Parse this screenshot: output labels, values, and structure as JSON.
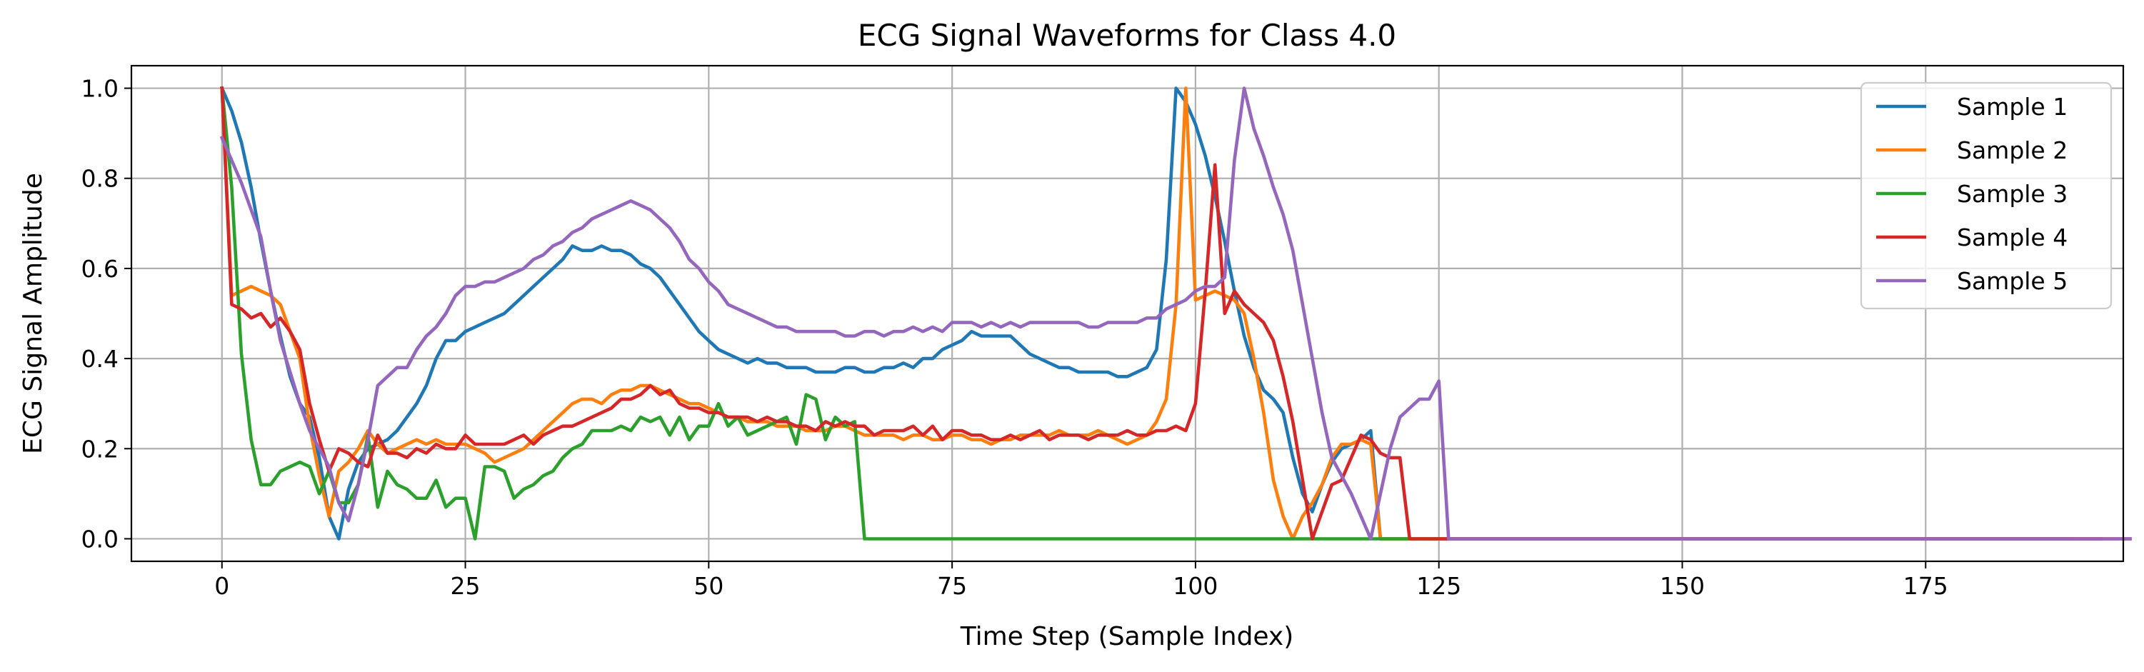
{
  "chart_data": {
    "type": "line",
    "title": "ECG Signal Waveforms for Class 4.0",
    "xlabel": "Time Step (Sample Index)",
    "ylabel": "ECG Signal Amplitude",
    "xlim": [
      -9.3,
      195.3
    ],
    "ylim": [
      -0.05,
      1.05
    ],
    "x_ticks": [
      0,
      25,
      50,
      75,
      100,
      125,
      150,
      175
    ],
    "y_ticks": [
      0.0,
      0.2,
      0.4,
      0.6,
      0.8,
      1.0
    ],
    "x_tick_labels": [
      "0",
      "25",
      "50",
      "75",
      "100",
      "125",
      "150",
      "175"
    ],
    "y_tick_labels": [
      "0.0",
      "0.2",
      "0.4",
      "0.6",
      "0.8",
      "1.0"
    ],
    "grid": true,
    "legend_position": "top-right",
    "x_end": 186,
    "series": [
      {
        "name": "Sample 1",
        "color": "#1f77b4",
        "values": [
          1.0,
          0.95,
          0.88,
          0.78,
          0.66,
          0.55,
          0.45,
          0.36,
          0.3,
          0.27,
          0.18,
          0.05,
          0.0,
          0.11,
          0.17,
          0.2,
          0.21,
          0.22,
          0.24,
          0.27,
          0.3,
          0.34,
          0.4,
          0.44,
          0.44,
          0.46,
          0.47,
          0.48,
          0.49,
          0.5,
          0.52,
          0.54,
          0.56,
          0.58,
          0.6,
          0.62,
          0.65,
          0.64,
          0.64,
          0.65,
          0.64,
          0.64,
          0.63,
          0.61,
          0.6,
          0.58,
          0.55,
          0.52,
          0.49,
          0.46,
          0.44,
          0.42,
          0.41,
          0.4,
          0.39,
          0.4,
          0.39,
          0.39,
          0.38,
          0.38,
          0.38,
          0.37,
          0.37,
          0.37,
          0.38,
          0.38,
          0.37,
          0.37,
          0.38,
          0.38,
          0.39,
          0.38,
          0.4,
          0.4,
          0.42,
          0.43,
          0.44,
          0.46,
          0.45,
          0.45,
          0.45,
          0.45,
          0.43,
          0.41,
          0.4,
          0.39,
          0.38,
          0.38,
          0.37,
          0.37,
          0.37,
          0.37,
          0.36,
          0.36,
          0.37,
          0.38,
          0.42,
          0.62,
          1.0,
          0.97,
          0.92,
          0.85,
          0.76,
          0.66,
          0.55,
          0.45,
          0.38,
          0.33,
          0.31,
          0.28,
          0.18,
          0.1,
          0.06,
          0.12,
          0.17,
          0.2,
          0.21,
          0.22,
          0.24,
          0.0,
          0.0,
          0.0,
          0.0,
          0.0,
          0.0,
          0.0,
          0.0,
          0.0,
          0.0,
          0.0,
          0.0,
          0.0,
          0.0,
          0.0,
          0.0,
          0.0,
          0.0,
          0.0,
          0.0,
          0.0,
          0.0,
          0.0,
          0.0,
          0.0,
          0.0,
          0.0,
          0.0,
          0.0,
          0.0,
          0.0,
          0.0,
          0.0,
          0.0,
          0.0,
          0.0,
          0.0,
          0.0,
          0.0,
          0.0,
          0.0,
          0.0,
          0.0,
          0.0,
          0.0,
          0.0,
          0.0,
          0.0,
          0.0,
          0.0,
          0.0,
          0.0,
          0.0,
          0.0,
          0.0,
          0.0,
          0.0,
          0.0,
          0.0,
          0.0,
          0.0,
          0.0,
          0.0,
          0.0,
          0.0,
          0.0,
          0.0,
          0.0,
          0.0,
          0.0,
          0.0,
          0.0,
          0.0,
          0.0,
          0.0
        ]
      },
      {
        "name": "Sample 2",
        "color": "#ff7f0e",
        "values": [
          1.0,
          0.54,
          0.55,
          0.56,
          0.55,
          0.54,
          0.52,
          0.46,
          0.4,
          0.25,
          0.14,
          0.05,
          0.15,
          0.17,
          0.2,
          0.24,
          0.21,
          0.19,
          0.2,
          0.21,
          0.22,
          0.21,
          0.22,
          0.21,
          0.21,
          0.21,
          0.2,
          0.19,
          0.17,
          0.18,
          0.19,
          0.2,
          0.22,
          0.24,
          0.26,
          0.28,
          0.3,
          0.31,
          0.31,
          0.3,
          0.32,
          0.33,
          0.33,
          0.34,
          0.34,
          0.33,
          0.32,
          0.31,
          0.3,
          0.3,
          0.29,
          0.28,
          0.27,
          0.27,
          0.26,
          0.26,
          0.26,
          0.25,
          0.25,
          0.25,
          0.24,
          0.24,
          0.24,
          0.25,
          0.25,
          0.24,
          0.23,
          0.23,
          0.23,
          0.23,
          0.22,
          0.23,
          0.23,
          0.22,
          0.22,
          0.23,
          0.23,
          0.22,
          0.22,
          0.21,
          0.22,
          0.22,
          0.23,
          0.23,
          0.23,
          0.23,
          0.24,
          0.23,
          0.23,
          0.23,
          0.24,
          0.23,
          0.22,
          0.21,
          0.22,
          0.23,
          0.26,
          0.31,
          0.52,
          1.0,
          0.53,
          0.54,
          0.55,
          0.54,
          0.53,
          0.5,
          0.4,
          0.28,
          0.13,
          0.05,
          0.0,
          0.05,
          0.08,
          0.12,
          0.18,
          0.21,
          0.21,
          0.22,
          0.21,
          0.0,
          0.0,
          0.0,
          0.0,
          0.0,
          0.0,
          0.0,
          0.0,
          0.0,
          0.0,
          0.0,
          0.0,
          0.0,
          0.0,
          0.0,
          0.0,
          0.0,
          0.0,
          0.0,
          0.0,
          0.0,
          0.0,
          0.0,
          0.0,
          0.0,
          0.0,
          0.0,
          0.0,
          0.0,
          0.0,
          0.0,
          0.0,
          0.0,
          0.0,
          0.0,
          0.0,
          0.0,
          0.0,
          0.0,
          0.0,
          0.0,
          0.0,
          0.0,
          0.0,
          0.0,
          0.0,
          0.0,
          0.0,
          0.0,
          0.0,
          0.0,
          0.0,
          0.0,
          0.0,
          0.0,
          0.0,
          0.0,
          0.0,
          0.0,
          0.0,
          0.0,
          0.0,
          0.0,
          0.0,
          0.0,
          0.0,
          0.0,
          0.0,
          0.0,
          0.0,
          0.0,
          0.0,
          0.0,
          0.0,
          0.0
        ]
      },
      {
        "name": "Sample 3",
        "color": "#2ca02c",
        "values": [
          1.0,
          0.78,
          0.41,
          0.22,
          0.12,
          0.12,
          0.15,
          0.16,
          0.17,
          0.16,
          0.1,
          0.15,
          0.08,
          0.08,
          0.12,
          0.23,
          0.07,
          0.15,
          0.12,
          0.11,
          0.09,
          0.09,
          0.13,
          0.07,
          0.09,
          0.09,
          0.0,
          0.16,
          0.16,
          0.15,
          0.09,
          0.11,
          0.12,
          0.14,
          0.15,
          0.18,
          0.2,
          0.21,
          0.24,
          0.24,
          0.24,
          0.25,
          0.24,
          0.27,
          0.26,
          0.27,
          0.23,
          0.27,
          0.22,
          0.25,
          0.25,
          0.3,
          0.25,
          0.27,
          0.23,
          0.24,
          0.25,
          0.26,
          0.27,
          0.21,
          0.32,
          0.31,
          0.22,
          0.27,
          0.25,
          0.26,
          0.0,
          0.0,
          0.0,
          0.0,
          0.0,
          0.0,
          0.0,
          0.0,
          0.0,
          0.0,
          0.0,
          0.0,
          0.0,
          0.0,
          0.0,
          0.0,
          0.0,
          0.0,
          0.0,
          0.0,
          0.0,
          0.0,
          0.0,
          0.0,
          0.0,
          0.0,
          0.0,
          0.0,
          0.0,
          0.0,
          0.0,
          0.0,
          0.0,
          0.0,
          0.0,
          0.0,
          0.0,
          0.0,
          0.0,
          0.0,
          0.0,
          0.0,
          0.0,
          0.0,
          0.0,
          0.0,
          0.0,
          0.0,
          0.0,
          0.0,
          0.0,
          0.0,
          0.0,
          0.0,
          0.0,
          0.0,
          0.0,
          0.0,
          0.0,
          0.0,
          0.0,
          0.0,
          0.0,
          0.0,
          0.0,
          0.0,
          0.0,
          0.0,
          0.0,
          0.0,
          0.0,
          0.0,
          0.0,
          0.0,
          0.0,
          0.0,
          0.0,
          0.0,
          0.0,
          0.0,
          0.0,
          0.0,
          0.0,
          0.0,
          0.0,
          0.0,
          0.0,
          0.0,
          0.0,
          0.0,
          0.0,
          0.0,
          0.0,
          0.0,
          0.0,
          0.0,
          0.0,
          0.0,
          0.0,
          0.0,
          0.0,
          0.0,
          0.0,
          0.0,
          0.0,
          0.0,
          0.0,
          0.0,
          0.0,
          0.0,
          0.0,
          0.0,
          0.0,
          0.0,
          0.0,
          0.0,
          0.0,
          0.0,
          0.0,
          0.0,
          0.0,
          0.0,
          0.0,
          0.0,
          0.0
        ]
      },
      {
        "name": "Sample 4",
        "color": "#d62728",
        "values": [
          1.0,
          0.52,
          0.51,
          0.49,
          0.5,
          0.47,
          0.49,
          0.46,
          0.42,
          0.3,
          0.22,
          0.15,
          0.2,
          0.19,
          0.17,
          0.16,
          0.23,
          0.19,
          0.19,
          0.18,
          0.2,
          0.19,
          0.21,
          0.2,
          0.2,
          0.23,
          0.21,
          0.21,
          0.21,
          0.21,
          0.22,
          0.23,
          0.21,
          0.23,
          0.24,
          0.25,
          0.25,
          0.26,
          0.27,
          0.28,
          0.29,
          0.31,
          0.31,
          0.32,
          0.34,
          0.32,
          0.33,
          0.3,
          0.29,
          0.29,
          0.28,
          0.28,
          0.27,
          0.27,
          0.27,
          0.26,
          0.27,
          0.26,
          0.26,
          0.25,
          0.25,
          0.24,
          0.26,
          0.25,
          0.26,
          0.25,
          0.25,
          0.23,
          0.24,
          0.24,
          0.24,
          0.25,
          0.23,
          0.25,
          0.22,
          0.24,
          0.24,
          0.23,
          0.23,
          0.22,
          0.22,
          0.23,
          0.22,
          0.23,
          0.24,
          0.22,
          0.23,
          0.23,
          0.23,
          0.22,
          0.23,
          0.23,
          0.23,
          0.24,
          0.23,
          0.23,
          0.24,
          0.24,
          0.25,
          0.24,
          0.3,
          0.55,
          0.83,
          0.5,
          0.55,
          0.52,
          0.5,
          0.48,
          0.44,
          0.36,
          0.26,
          0.13,
          0.0,
          0.06,
          0.12,
          0.13,
          0.18,
          0.23,
          0.22,
          0.19,
          0.18,
          0.18,
          0.0,
          0.0,
          0.0,
          0.0,
          0.0,
          0.0,
          0.0,
          0.0,
          0.0,
          0.0,
          0.0,
          0.0,
          0.0,
          0.0,
          0.0,
          0.0,
          0.0,
          0.0,
          0.0,
          0.0,
          0.0,
          0.0,
          0.0,
          0.0,
          0.0,
          0.0,
          0.0,
          0.0,
          0.0,
          0.0,
          0.0,
          0.0,
          0.0,
          0.0,
          0.0,
          0.0,
          0.0,
          0.0,
          0.0,
          0.0,
          0.0,
          0.0,
          0.0,
          0.0,
          0.0,
          0.0,
          0.0,
          0.0,
          0.0,
          0.0,
          0.0,
          0.0,
          0.0,
          0.0,
          0.0,
          0.0,
          0.0,
          0.0,
          0.0,
          0.0,
          0.0,
          0.0,
          0.0,
          0.0,
          0.0,
          0.0,
          0.0,
          0.0,
          0.0,
          0.0,
          0.0,
          0.0,
          0.0,
          0.0,
          0.0
        ]
      },
      {
        "name": "Sample 5",
        "color": "#9467bd",
        "values": [
          0.89,
          0.84,
          0.79,
          0.73,
          0.67,
          0.55,
          0.44,
          0.37,
          0.3,
          0.24,
          0.2,
          0.16,
          0.08,
          0.04,
          0.12,
          0.22,
          0.34,
          0.36,
          0.38,
          0.38,
          0.42,
          0.45,
          0.47,
          0.5,
          0.54,
          0.56,
          0.56,
          0.57,
          0.57,
          0.58,
          0.59,
          0.6,
          0.62,
          0.63,
          0.65,
          0.66,
          0.68,
          0.69,
          0.71,
          0.72,
          0.73,
          0.74,
          0.75,
          0.74,
          0.73,
          0.71,
          0.69,
          0.66,
          0.62,
          0.6,
          0.57,
          0.55,
          0.52,
          0.51,
          0.5,
          0.49,
          0.48,
          0.47,
          0.47,
          0.46,
          0.46,
          0.46,
          0.46,
          0.46,
          0.45,
          0.45,
          0.46,
          0.46,
          0.45,
          0.46,
          0.46,
          0.47,
          0.46,
          0.47,
          0.46,
          0.48,
          0.48,
          0.48,
          0.47,
          0.48,
          0.47,
          0.48,
          0.47,
          0.48,
          0.48,
          0.48,
          0.48,
          0.48,
          0.48,
          0.47,
          0.47,
          0.48,
          0.48,
          0.48,
          0.48,
          0.49,
          0.49,
          0.51,
          0.52,
          0.53,
          0.55,
          0.56,
          0.56,
          0.58,
          0.84,
          1.0,
          0.91,
          0.85,
          0.78,
          0.72,
          0.64,
          0.52,
          0.4,
          0.28,
          0.18,
          0.14,
          0.1,
          0.05,
          0.0,
          0.1,
          0.2,
          0.27,
          0.29,
          0.31,
          0.31,
          0.35,
          0.0,
          0.0,
          0.0,
          0.0,
          0.0,
          0.0,
          0.0,
          0.0,
          0.0,
          0.0,
          0.0,
          0.0,
          0.0,
          0.0,
          0.0,
          0.0,
          0.0,
          0.0,
          0.0,
          0.0,
          0.0,
          0.0,
          0.0,
          0.0,
          0.0,
          0.0,
          0.0,
          0.0,
          0.0,
          0.0,
          0.0,
          0.0,
          0.0,
          0.0,
          0.0,
          0.0,
          0.0,
          0.0,
          0.0,
          0.0,
          0.0,
          0.0,
          0.0,
          0.0,
          0.0,
          0.0,
          0.0,
          0.0,
          0.0,
          0.0,
          0.0,
          0.0,
          0.0,
          0.0,
          0.0,
          0.0,
          0.0,
          0.0,
          0.0,
          0.0,
          0.0,
          0.0,
          0.0,
          0.0,
          0.0,
          0.0,
          0.0,
          0.0,
          0.0,
          0.0,
          0.0
        ]
      }
    ]
  }
}
